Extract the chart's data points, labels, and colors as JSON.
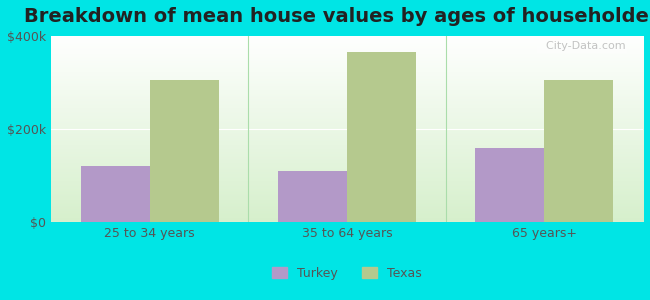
{
  "title": "Breakdown of mean house values by ages of householders",
  "categories": [
    "25 to 34 years",
    "35 to 64 years",
    "65 years+"
  ],
  "turkey_values": [
    120000,
    110000,
    160000
  ],
  "texas_values": [
    305000,
    365000,
    305000
  ],
  "turkey_color": "#b399c8",
  "texas_color": "#b5c98e",
  "background_color": "#00e5e5",
  "plot_bg_top": "#ffffff",
  "plot_bg_bottom": "#d6f0cc",
  "ylim": [
    0,
    400000
  ],
  "yticks": [
    0,
    200000,
    400000
  ],
  "ytick_labels": [
    "$0",
    "$200k",
    "$400k"
  ],
  "bar_width": 0.35,
  "title_fontsize": 14,
  "tick_fontsize": 9,
  "legend_labels": [
    "Turkey",
    "Texas"
  ],
  "legend_colors": [
    "#b399c8",
    "#b5c98e"
  ]
}
